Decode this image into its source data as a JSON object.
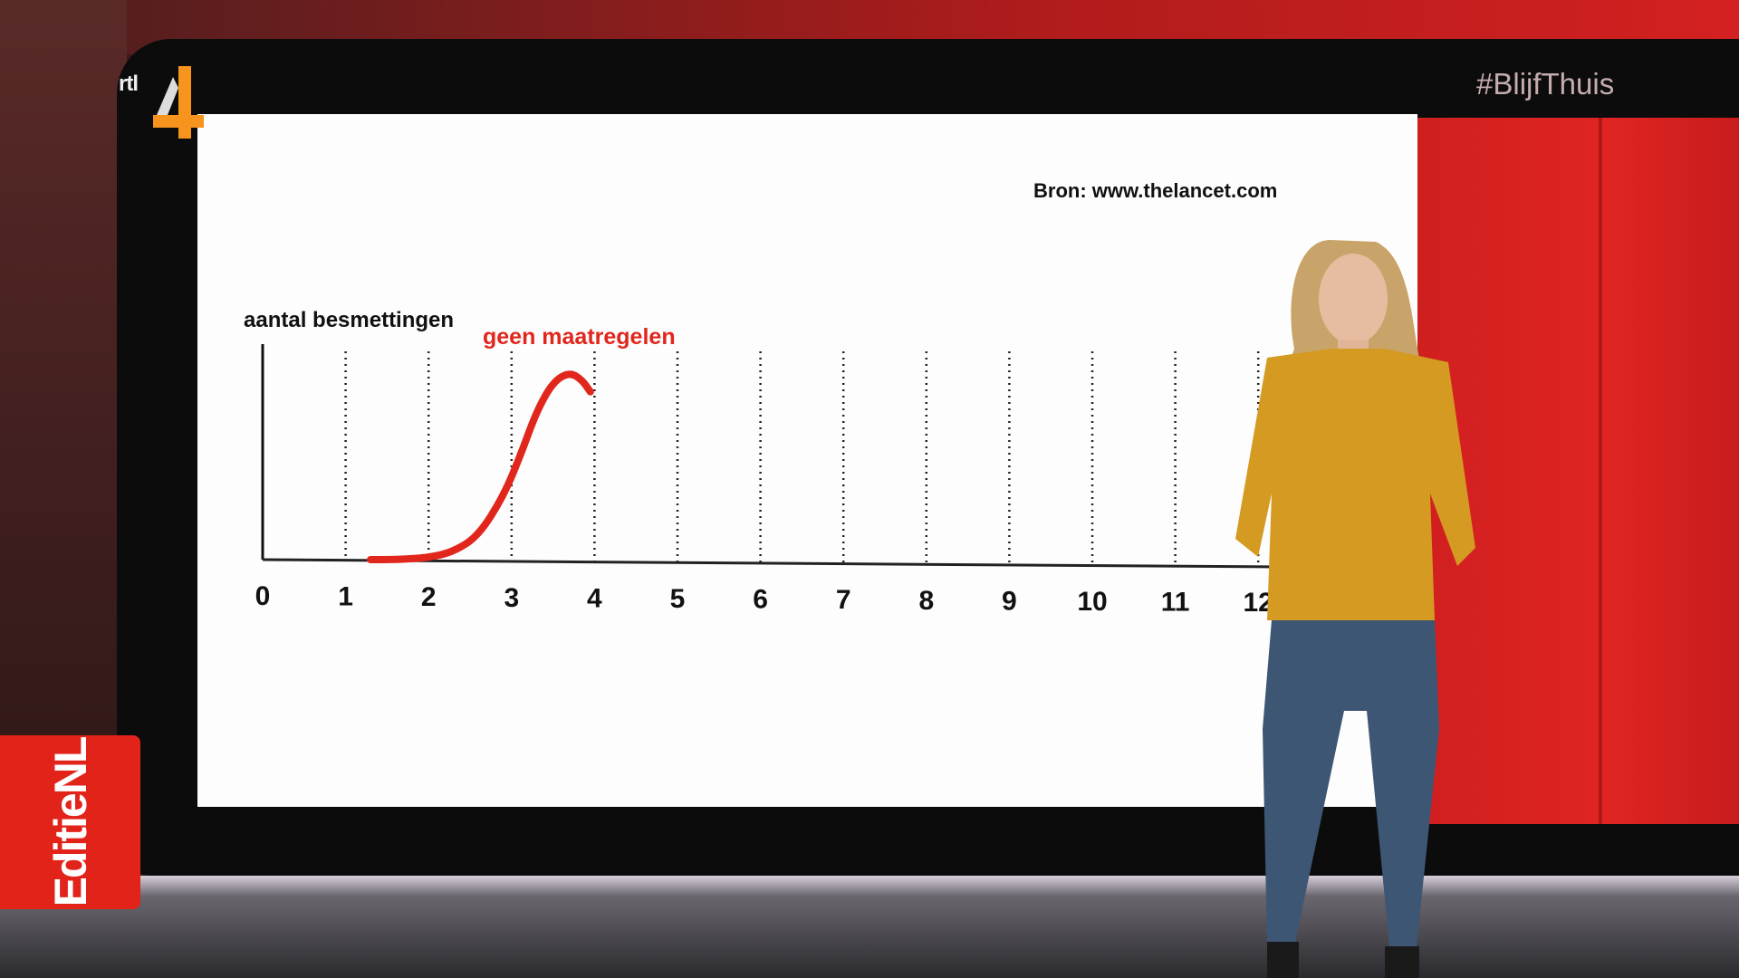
{
  "broadcast": {
    "channel_logo": "rtl 4",
    "hashtag": "#BlijfThuis",
    "program_badge": "EditieNL",
    "colors": {
      "brand_red": "#e2231a",
      "logo_orange": "#f7941d"
    }
  },
  "chart_data": {
    "type": "line",
    "source": "Bron: www.thelancet.com",
    "ylabel": "aantal besmettingen",
    "xlabel": "",
    "x_ticks": [
      "0",
      "1",
      "2",
      "3",
      "4",
      "5",
      "6",
      "7",
      "8",
      "9",
      "10",
      "11",
      "12"
    ],
    "xlim": [
      0,
      12
    ],
    "ylim": [
      0,
      1
    ],
    "grid": "vertical dotted",
    "series": [
      {
        "name": "geen maatregelen",
        "color": "#e1261c",
        "x": [
          1.3,
          1.6,
          2.0,
          2.3,
          2.6,
          2.9,
          3.1,
          3.3,
          3.5,
          3.7,
          3.85,
          3.95
        ],
        "y": [
          0,
          0,
          0.01,
          0.04,
          0.12,
          0.32,
          0.52,
          0.75,
          0.9,
          0.95,
          0.91,
          0.85
        ]
      }
    ]
  }
}
